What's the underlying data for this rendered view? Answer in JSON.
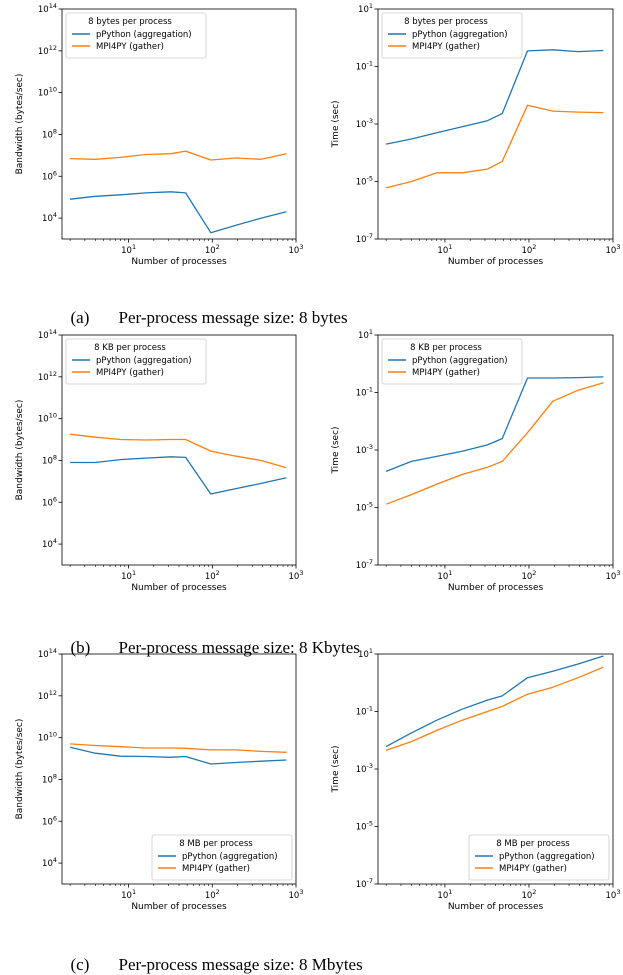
{
  "colors": {
    "blue": "#1f77b4",
    "orange": "#ff7f0e"
  },
  "captions": [
    {
      "tag": "(a)",
      "text": "Per-process message size: 8 bytes"
    },
    {
      "tag": "(b)",
      "text": "Per-process message size: 8 Kbytes"
    },
    {
      "tag": "(c)",
      "text": "Per-process message size: 8 Mbytes"
    }
  ],
  "chart_data": [
    {
      "type": "line",
      "xscale": "log",
      "yscale": "log",
      "xlim": [
        1.6,
        1000
      ],
      "ylim": [
        1000,
        100000000000000.0
      ],
      "xlabel": "Number of processes",
      "ylabel": "Bandwidth (bytes/sec)",
      "xticks": [
        10,
        100,
        1000
      ],
      "xtick_labels": [
        "10^1",
        "10^2",
        "10^3"
      ],
      "yticks": [
        10000.0,
        1000000.0,
        100000000.0,
        10000000000.0,
        1000000000000.0,
        100000000000000.0
      ],
      "ytick_labels": [
        "10^4",
        "10^6",
        "10^8",
        "10^10",
        "10^12",
        "10^14"
      ],
      "legend": {
        "title": "8 bytes per process",
        "position": "top-left"
      },
      "series": [
        {
          "name": "pPython (aggregation)",
          "color": "#1f77b4",
          "x": [
            2,
            4,
            8,
            16,
            32,
            48,
            96,
            192,
            384,
            768
          ],
          "y": [
            80000,
            110000,
            130000,
            160000,
            180000,
            160000,
            2000,
            4500,
            10000,
            20000
          ]
        },
        {
          "name": "MPI4PY (gather)",
          "color": "#ff7f0e",
          "x": [
            2,
            4,
            8,
            16,
            32,
            48,
            96,
            192,
            384,
            768
          ],
          "y": [
            7000000,
            6500000,
            8000000,
            11000000,
            12000000,
            16000000,
            6000000,
            7500000,
            6500000,
            12000000
          ]
        }
      ]
    },
    {
      "type": "line",
      "xscale": "log",
      "yscale": "log",
      "xlim": [
        1.6,
        1000
      ],
      "ylim": [
        1e-07,
        10
      ],
      "xlabel": "Number of processes",
      "ylabel": "Time (sec)",
      "xticks": [
        10,
        100,
        1000
      ],
      "xtick_labels": [
        "10^1",
        "10^2",
        "10^3"
      ],
      "yticks": [
        1e-07,
        1e-05,
        0.001,
        0.1,
        10
      ],
      "ytick_labels": [
        "10^-7",
        "10^-5",
        "10^-3",
        "10^-1",
        "10^1"
      ],
      "legend": {
        "title": "8 bytes per process",
        "position": "top-left"
      },
      "series": [
        {
          "name": "pPython (aggregation)",
          "color": "#1f77b4",
          "x": [
            2,
            4,
            8,
            16,
            32,
            48,
            96,
            192,
            384,
            768
          ],
          "y": [
            0.0002,
            0.0003,
            0.0005,
            0.0008,
            0.0013,
            0.0023,
            0.35,
            0.38,
            0.33,
            0.36
          ]
        },
        {
          "name": "MPI4PY (gather)",
          "color": "#ff7f0e",
          "x": [
            2,
            4,
            8,
            16,
            32,
            48,
            96,
            192,
            384,
            768
          ],
          "y": [
            6e-06,
            1e-05,
            2e-05,
            2e-05,
            2.7e-05,
            5e-05,
            0.0045,
            0.0028,
            0.0026,
            0.0025
          ]
        }
      ]
    },
    {
      "type": "line",
      "xscale": "log",
      "yscale": "log",
      "xlim": [
        1.6,
        1000
      ],
      "ylim": [
        1000,
        100000000000000.0
      ],
      "xlabel": "Number of processes",
      "ylabel": "Bandwidth (bytes/sec)",
      "xticks": [
        10,
        100,
        1000
      ],
      "xtick_labels": [
        "10^1",
        "10^2",
        "10^3"
      ],
      "yticks": [
        10000.0,
        1000000.0,
        100000000.0,
        10000000000.0,
        1000000000000.0,
        100000000000000.0
      ],
      "ytick_labels": [
        "10^4",
        "10^6",
        "10^8",
        "10^10",
        "10^12",
        "10^14"
      ],
      "legend": {
        "title": "8 KB per process",
        "position": "top-left"
      },
      "series": [
        {
          "name": "pPython (aggregation)",
          "color": "#1f77b4",
          "x": [
            2,
            4,
            8,
            16,
            32,
            48,
            96,
            192,
            384,
            768
          ],
          "y": [
            80000000,
            80000000,
            110000000,
            130000000,
            150000000,
            140000000,
            2500000,
            4500000,
            8000000,
            15000000
          ]
        },
        {
          "name": "MPI4PY (gather)",
          "color": "#ff7f0e",
          "x": [
            2,
            4,
            8,
            16,
            32,
            48,
            96,
            192,
            384,
            768
          ],
          "y": [
            1800000000.0,
            1300000000.0,
            1000000000.0,
            950000000.0,
            1000000000.0,
            1000000000.0,
            280000000.0,
            160000000.0,
            100000000.0,
            45000000.0
          ]
        }
      ]
    },
    {
      "type": "line",
      "xscale": "log",
      "yscale": "log",
      "xlim": [
        1.6,
        1000
      ],
      "ylim": [
        1e-07,
        10
      ],
      "xlabel": "Number of processes",
      "ylabel": "Time (sec)",
      "xticks": [
        10,
        100,
        1000
      ],
      "xtick_labels": [
        "10^1",
        "10^2",
        "10^3"
      ],
      "yticks": [
        1e-07,
        1e-05,
        0.001,
        0.1,
        10
      ],
      "ytick_labels": [
        "10^-7",
        "10^-5",
        "10^-3",
        "10^-1",
        "10^1"
      ],
      "legend": {
        "title": "8 KB per process",
        "position": "top-left"
      },
      "series": [
        {
          "name": "pPython (aggregation)",
          "color": "#1f77b4",
          "x": [
            2,
            4,
            8,
            16,
            32,
            48,
            96,
            192,
            384,
            768
          ],
          "y": [
            0.00018,
            0.0004,
            0.0006,
            0.0009,
            0.0015,
            0.0025,
            0.32,
            0.32,
            0.33,
            0.35
          ]
        },
        {
          "name": "MPI4PY (gather)",
          "color": "#ff7f0e",
          "x": [
            2,
            4,
            8,
            16,
            32,
            48,
            96,
            192,
            384,
            768
          ],
          "y": [
            1.3e-05,
            2.8e-05,
            6.5e-05,
            0.00014,
            0.00025,
            0.0004,
            0.004,
            0.05,
            0.12,
            0.22
          ]
        }
      ]
    },
    {
      "type": "line",
      "xscale": "log",
      "yscale": "log",
      "xlim": [
        1.6,
        1000
      ],
      "ylim": [
        1000,
        100000000000000.0
      ],
      "xlabel": "Number of processes",
      "ylabel": "Bandwidth (bytes/sec)",
      "xticks": [
        10,
        100,
        1000
      ],
      "xtick_labels": [
        "10^1",
        "10^2",
        "10^3"
      ],
      "yticks": [
        10000.0,
        1000000.0,
        100000000.0,
        10000000000.0,
        1000000000000.0,
        100000000000000.0
      ],
      "ytick_labels": [
        "10^4",
        "10^6",
        "10^8",
        "10^10",
        "10^12",
        "10^14"
      ],
      "legend": {
        "title": "8 MB per process",
        "position": "bottom-right"
      },
      "series": [
        {
          "name": "pPython (aggregation)",
          "color": "#1f77b4",
          "x": [
            2,
            4,
            8,
            16,
            32,
            48,
            96,
            192,
            384,
            768
          ],
          "y": [
            3500000000.0,
            1800000000.0,
            1300000000.0,
            1250000000.0,
            1150000000.0,
            1250000000.0,
            550000000.0,
            650000000.0,
            750000000.0,
            850000000.0
          ]
        },
        {
          "name": "MPI4PY (gather)",
          "color": "#ff7f0e",
          "x": [
            2,
            4,
            8,
            16,
            32,
            48,
            96,
            192,
            384,
            768
          ],
          "y": [
            5000000000.0,
            4200000000.0,
            3700000000.0,
            3200000000.0,
            3200000000.0,
            3100000000.0,
            2600000000.0,
            2600000000.0,
            2200000000.0,
            2000000000.0
          ]
        }
      ]
    },
    {
      "type": "line",
      "xscale": "log",
      "yscale": "log",
      "xlim": [
        1.6,
        1000
      ],
      "ylim": [
        1e-07,
        10
      ],
      "xlabel": "Number of processes",
      "ylabel": "Time (sec)",
      "xticks": [
        10,
        100,
        1000
      ],
      "xtick_labels": [
        "10^1",
        "10^2",
        "10^3"
      ],
      "yticks": [
        1e-07,
        1e-05,
        0.001,
        0.1,
        10
      ],
      "ytick_labels": [
        "10^-7",
        "10^-5",
        "10^-3",
        "10^-1",
        "10^1"
      ],
      "legend": {
        "title": "8 MB per process",
        "position": "bottom-right"
      },
      "series": [
        {
          "name": "pPython (aggregation)",
          "color": "#1f77b4",
          "x": [
            2,
            4,
            8,
            16,
            32,
            48,
            96,
            192,
            384,
            768
          ],
          "y": [
            0.006,
            0.018,
            0.05,
            0.12,
            0.25,
            0.35,
            1.5,
            2.5,
            4.5,
            8.5
          ]
        },
        {
          "name": "MPI4PY (gather)",
          "color": "#ff7f0e",
          "x": [
            2,
            4,
            8,
            16,
            32,
            48,
            96,
            192,
            384,
            768
          ],
          "y": [
            0.0045,
            0.009,
            0.022,
            0.05,
            0.1,
            0.15,
            0.4,
            0.7,
            1.5,
            3.5
          ]
        }
      ]
    }
  ]
}
